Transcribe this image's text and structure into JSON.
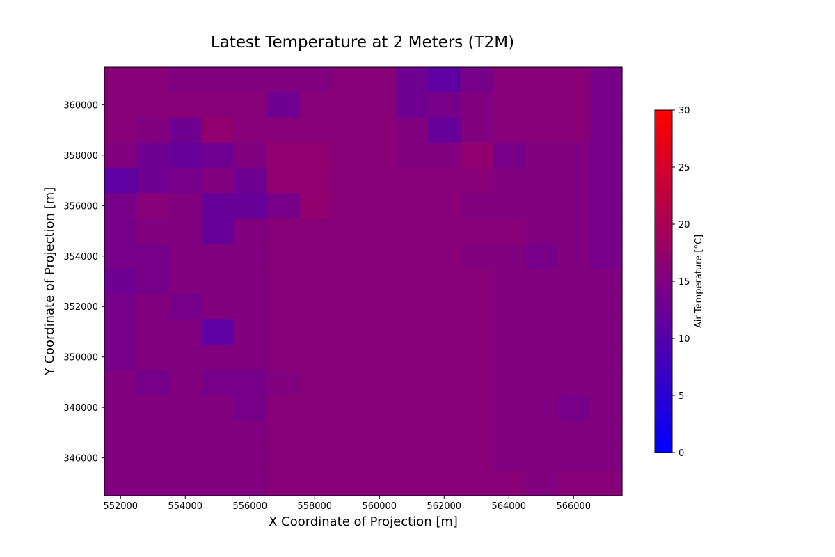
{
  "chart_data": {
    "type": "heatmap",
    "title": "Latest Temperature at 2 Meters (T2M)",
    "xlabel": "X Coordinate of Projection [m]",
    "ylabel": "Y Coordinate of Projection [m]",
    "xlim": [
      551500,
      567500
    ],
    "ylim": [
      344500,
      361500
    ],
    "x_ticks": [
      552000,
      554000,
      556000,
      558000,
      560000,
      562000,
      564000,
      566000
    ],
    "y_ticks": [
      346000,
      348000,
      350000,
      352000,
      354000,
      356000,
      358000,
      360000
    ],
    "x_centers": [
      552000,
      553000,
      554000,
      555000,
      556000,
      557000,
      558000,
      559000,
      560000,
      561000,
      562000,
      563000,
      564000,
      565000,
      566000,
      567000
    ],
    "y_centers": [
      361000,
      360000,
      359000,
      358000,
      357000,
      356000,
      355000,
      354000,
      353000,
      352000,
      351000,
      350000,
      349000,
      348000,
      347000,
      346000,
      345000
    ],
    "values": [
      [
        16,
        16,
        15,
        15,
        15,
        15,
        15,
        16,
        16,
        13,
        11,
        14,
        16,
        16,
        16,
        14
      ],
      [
        16,
        16,
        16,
        16,
        16,
        13,
        16,
        16,
        16,
        13,
        14,
        15,
        16,
        16,
        16,
        14
      ],
      [
        16,
        15,
        13,
        17,
        16,
        16,
        16,
        16,
        16,
        15,
        12,
        15,
        16,
        16,
        16,
        14
      ],
      [
        15,
        13,
        12,
        13,
        15,
        17,
        17,
        16,
        16,
        15,
        15,
        17,
        14,
        15,
        15,
        14
      ],
      [
        11,
        13,
        14,
        15,
        13,
        17,
        17,
        16,
        16,
        16,
        16,
        16,
        15,
        15,
        15,
        14
      ],
      [
        14,
        16,
        15,
        12,
        12,
        14,
        17,
        16,
        16,
        16,
        16,
        15,
        15,
        15,
        15,
        14
      ],
      [
        14,
        15,
        15,
        12,
        15,
        16,
        16,
        16,
        16,
        16,
        16,
        16,
        16,
        15,
        15,
        14
      ],
      [
        14,
        14,
        15,
        15,
        15,
        16,
        16,
        16,
        16,
        16,
        16,
        15,
        15,
        14,
        15,
        14
      ],
      [
        13,
        14,
        15,
        15,
        15,
        16,
        16,
        16,
        16,
        16,
        16,
        16,
        15,
        15,
        15,
        15
      ],
      [
        14,
        15,
        14,
        15,
        15,
        16,
        16,
        16,
        16,
        16,
        16,
        16,
        15,
        15,
        15,
        15
      ],
      [
        14,
        15,
        15,
        11,
        15,
        16,
        16,
        16,
        16,
        16,
        16,
        16,
        15,
        15,
        15,
        15
      ],
      [
        14,
        15,
        15,
        15,
        15,
        16,
        16,
        16,
        16,
        16,
        16,
        16,
        15,
        15,
        15,
        15
      ],
      [
        15,
        14,
        15,
        14,
        14,
        15,
        16,
        16,
        16,
        16,
        16,
        16,
        15,
        15,
        15,
        15
      ],
      [
        15,
        15,
        15,
        15,
        14,
        16,
        16,
        16,
        16,
        16,
        16,
        16,
        15,
        15,
        14,
        15
      ],
      [
        15,
        15,
        15,
        15,
        15,
        16,
        16,
        16,
        16,
        16,
        16,
        16,
        15,
        15,
        15,
        15
      ],
      [
        15,
        15,
        15,
        15,
        15,
        16,
        16,
        16,
        16,
        16,
        16,
        16,
        15,
        15,
        15,
        15
      ],
      [
        15,
        15,
        15,
        15,
        15,
        16,
        16,
        16,
        16,
        16,
        16,
        16,
        16,
        15,
        16,
        16
      ]
    ],
    "colorbar": {
      "label": "Air Temperature [°C]",
      "min": 0,
      "max": 30,
      "ticks": [
        0,
        5,
        10,
        15,
        20,
        25,
        30
      ],
      "color_low": "#0000ff",
      "color_high": "#ff0000"
    },
    "grid": false
  }
}
